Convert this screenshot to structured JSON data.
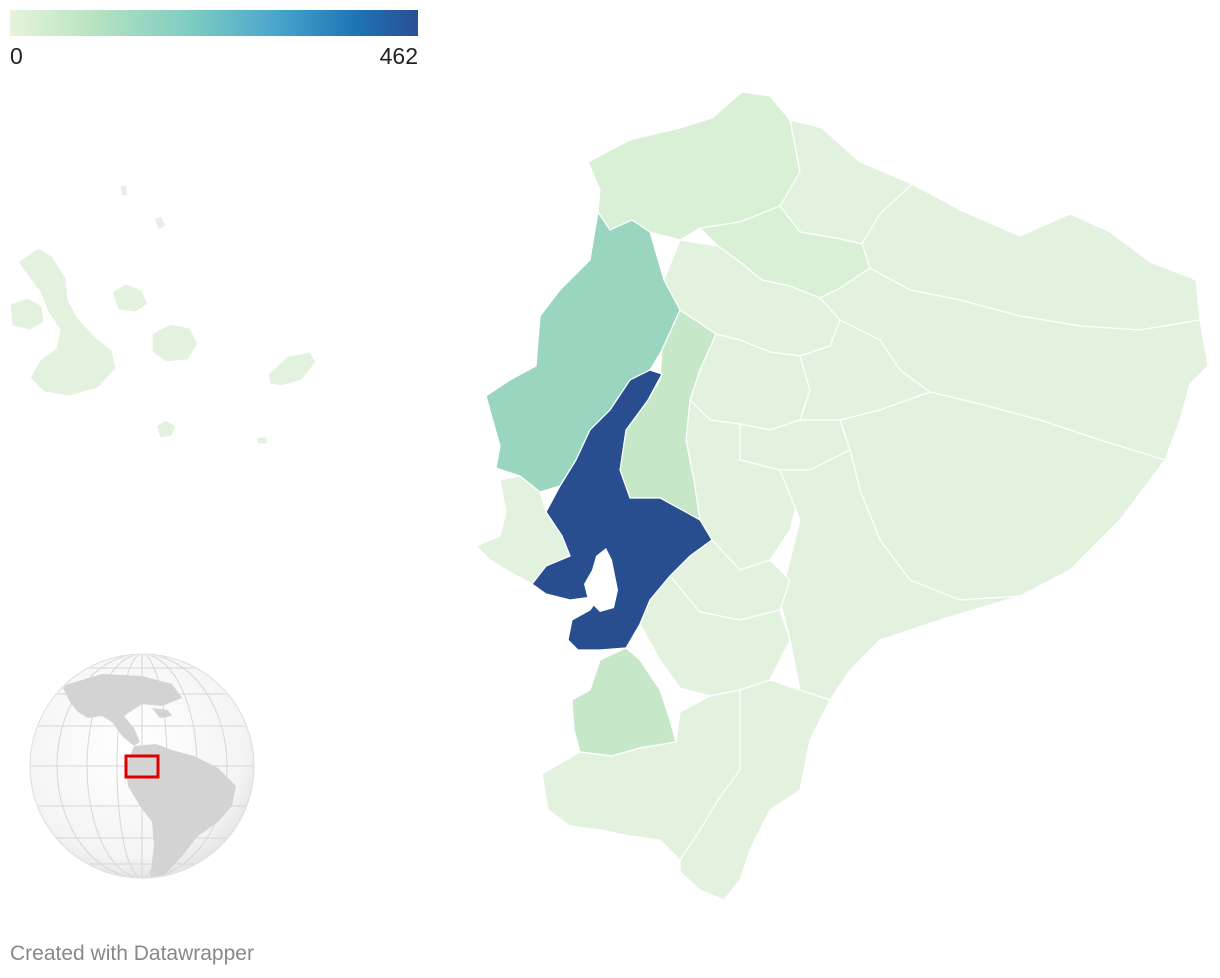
{
  "legend": {
    "min_label": "0",
    "max_label": "462",
    "gradient_colors": [
      "#e6f4dc",
      "#b9e3c1",
      "#7ccbc1",
      "#4aa6cc",
      "#1d74b4",
      "#2a4f93"
    ]
  },
  "credit": "Created with Datawrapper",
  "colors": {
    "lowest": "#e3f2df",
    "low": "#d9efd6",
    "mid_low": "#c6e8c9",
    "mid": "#9ad5c0",
    "highest": "#284e8f"
  },
  "locator": {
    "land_color": "#d3d3d3",
    "highlight_color": "#dd0000"
  }
}
